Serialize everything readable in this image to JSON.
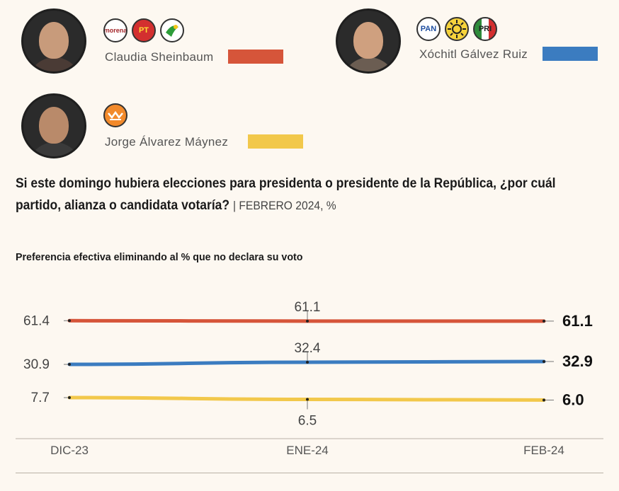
{
  "candidates": [
    {
      "name": "Claudia Sheinbaum",
      "color": "#d6553a",
      "parties": [
        "morena",
        "PT",
        "PVEM"
      ]
    },
    {
      "name": "Xóchitl Gálvez Ruiz",
      "color": "#3b7cc0",
      "parties": [
        "PAN",
        "PRD",
        "PRI"
      ]
    },
    {
      "name": "Jorge Álvarez Máynez",
      "color": "#f2c84b",
      "parties": [
        "MC"
      ]
    }
  ],
  "question": "Si este domingo hubiera elecciones para presidenta o presidente de la República, ¿por cuál partido, alianza o candidata votaría?",
  "question_note": "| FEBRERO 2024, %",
  "subtitle": "Preferencia efectiva eliminando al % que no declara su voto",
  "chart_data": {
    "type": "line",
    "x": [
      "DIC-23",
      "ENE-24",
      "FEB-24"
    ],
    "ylim": [
      0,
      70
    ],
    "series": [
      {
        "name": "Claudia Sheinbaum",
        "values": [
          61.4,
          61.1,
          61.1
        ],
        "labels": [
          "61.4",
          "61.1",
          "61.1"
        ],
        "color": "#d6553a"
      },
      {
        "name": "Xóchitl Gálvez Ruiz",
        "values": [
          30.9,
          32.4,
          32.9
        ],
        "labels": [
          "30.9",
          "32.4",
          "32.9"
        ],
        "color": "#3b7cc0"
      },
      {
        "name": "Jorge Álvarez Máynez",
        "values": [
          7.7,
          6.5,
          6.0
        ],
        "labels": [
          "7.7",
          "6.5",
          "6.0"
        ],
        "color": "#f2c84b"
      }
    ]
  }
}
